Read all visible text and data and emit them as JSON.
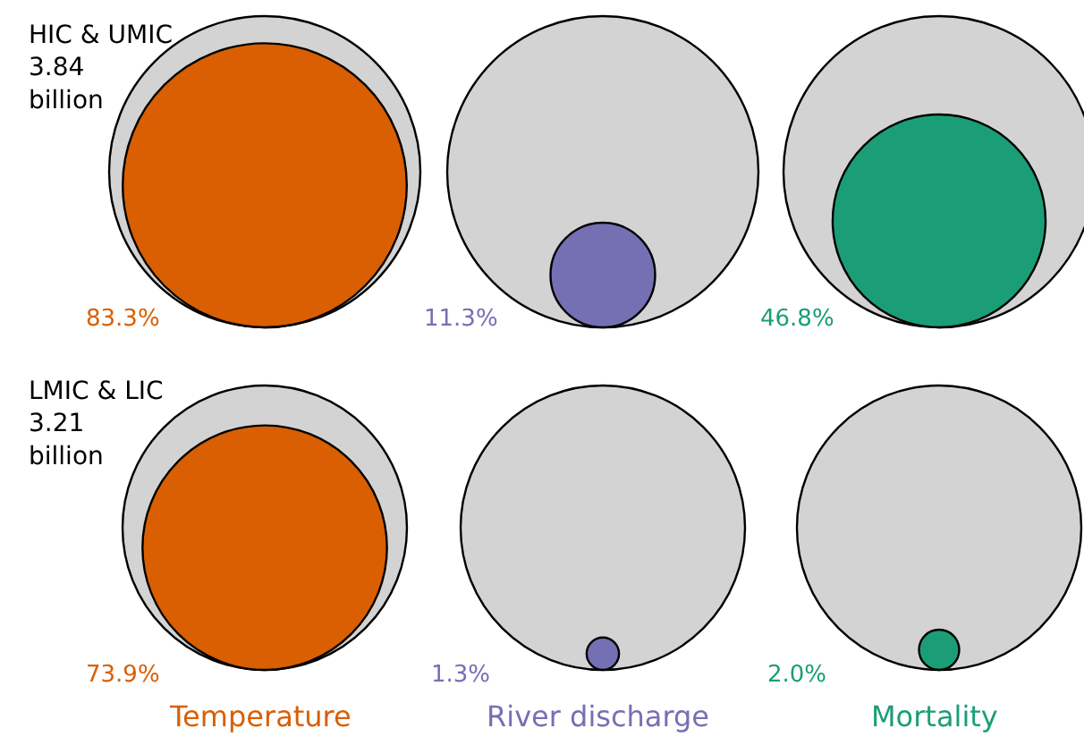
{
  "chart_data": {
    "type": "other",
    "categories": [
      "Temperature",
      "River discharge",
      "Mortality"
    ],
    "colors": [
      "#d95f02",
      "#7570b3",
      "#1b9e77"
    ],
    "series": [
      {
        "name": "HIC & UMIC\n3.84\nbillion",
        "values": [
          83.3,
          11.3,
          46.8
        ],
        "value_labels": [
          "83.3%",
          "11.3%",
          "46.8%"
        ]
      },
      {
        "name": "LMIC & LIC\n3.21\nbillion",
        "values": [
          73.9,
          1.3,
          2.0
        ],
        "value_labels": [
          "73.9%",
          "1.3%",
          "2.0%"
        ]
      }
    ]
  }
}
